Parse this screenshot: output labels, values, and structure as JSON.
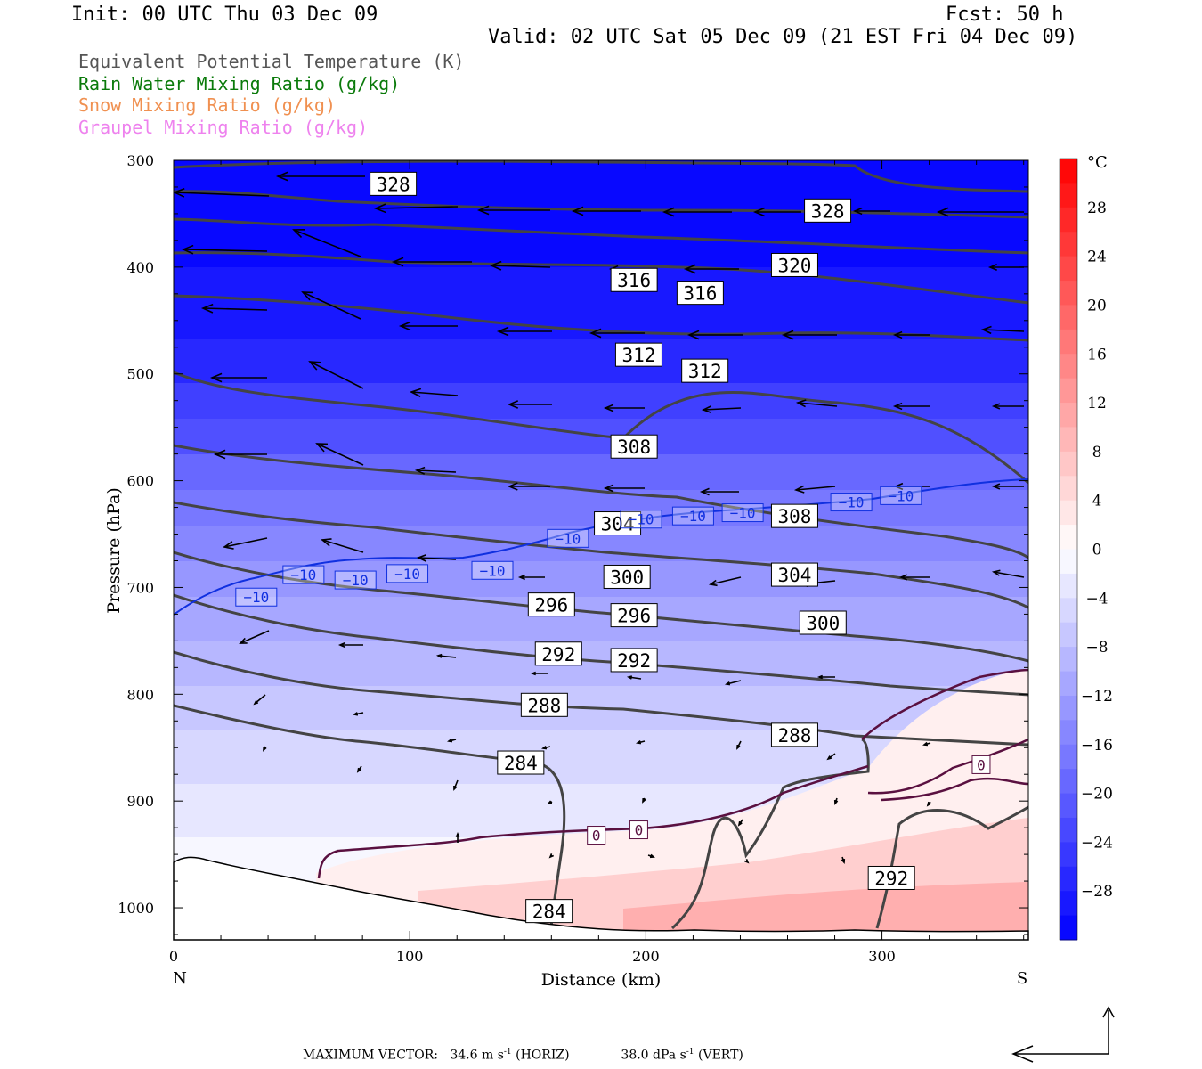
{
  "header": {
    "init": "Init: 00 UTC Thu 03 Dec 09",
    "fcst": "Fcst:   50 h",
    "valid": "Valid: 02 UTC Sat 05 Dec 09 (21 EST Fri 04 Dec 09)"
  },
  "fields": [
    {
      "label": "Equivalent Potential Temperature (K)",
      "color": "#555555"
    },
    {
      "label": "Rain Water Mixing Ratio (g/kg)",
      "color": "#0a7a0a"
    },
    {
      "label": "Snow Mixing Ratio (g/kg)",
      "color": "#f09050"
    },
    {
      "label": "Graupel Mixing Ratio (g/kg)",
      "color": "#ee82ee"
    }
  ],
  "footer": {
    "max_label": "MAXIMUM VECTOR:",
    "horiz_value": "34.6 m s",
    "horiz_unit": "(HORIZ)",
    "vert_value": "38.0 dPa s",
    "vert_unit": "(VERT)",
    "exponent": "-1"
  },
  "chart_data": {
    "type": "heatmap",
    "xlabel": "Distance (km)",
    "ylabel": "Pressure (hPa)",
    "x_ticks": [
      0,
      100,
      200,
      300
    ],
    "y_ticks": [
      300,
      400,
      500,
      600,
      700,
      800,
      900,
      1000
    ],
    "xlim": [
      0,
      362
    ],
    "ylim": [
      300,
      1030
    ],
    "y_direction": "pressure decreasing upward",
    "x_end_labels": {
      "left": "N",
      "right": "S"
    },
    "colorbar": {
      "unit": "°C",
      "ticks": [
        28,
        24,
        20,
        16,
        12,
        8,
        4,
        0,
        -4,
        -8,
        -12,
        -16,
        -20,
        -24,
        -28
      ],
      "range": [
        -32,
        32
      ],
      "colors": "blue (cold) to red (warm)"
    },
    "theta_e_contour_labels": [
      {
        "value": 328,
        "x": 93,
        "p": 322
      },
      {
        "value": 328,
        "x": 277,
        "p": 347
      },
      {
        "value": 320,
        "x": 263,
        "p": 398
      },
      {
        "value": 316,
        "x": 195,
        "p": 412
      },
      {
        "value": 316,
        "x": 223,
        "p": 424
      },
      {
        "value": 312,
        "x": 197,
        "p": 482
      },
      {
        "value": 312,
        "x": 225,
        "p": 497
      },
      {
        "value": 308,
        "x": 195,
        "p": 568
      },
      {
        "value": 308,
        "x": 263,
        "p": 633
      },
      {
        "value": 304,
        "x": 188,
        "p": 640
      },
      {
        "value": 304,
        "x": 263,
        "p": 688
      },
      {
        "value": 300,
        "x": 192,
        "p": 690
      },
      {
        "value": 300,
        "x": 275,
        "p": 733
      },
      {
        "value": 296,
        "x": 160,
        "p": 716
      },
      {
        "value": 296,
        "x": 195,
        "p": 726
      },
      {
        "value": 292,
        "x": 163,
        "p": 762
      },
      {
        "value": 292,
        "x": 195,
        "p": 768
      },
      {
        "value": 292,
        "x": 304,
        "p": 972
      },
      {
        "value": 288,
        "x": 157,
        "p": 810
      },
      {
        "value": 288,
        "x": 263,
        "p": 838
      },
      {
        "value": 284,
        "x": 147,
        "p": 864
      },
      {
        "value": 284,
        "x": 159,
        "p": 1003
      }
    ],
    "temperature_contour_labels": [
      {
        "value": -10,
        "x": 35,
        "p": 709
      },
      {
        "value": -10,
        "x": 55,
        "p": 688
      },
      {
        "value": -10,
        "x": 77,
        "p": 693
      },
      {
        "value": -10,
        "x": 99,
        "p": 687
      },
      {
        "value": -10,
        "x": 135,
        "p": 684
      },
      {
        "value": -10,
        "x": 167,
        "p": 654
      },
      {
        "value": -10,
        "x": 198,
        "p": 636
      },
      {
        "value": -10,
        "x": 220,
        "p": 633
      },
      {
        "value": -10,
        "x": 241,
        "p": 630
      },
      {
        "value": -10,
        "x": 287,
        "p": 620
      },
      {
        "value": -10,
        "x": 308,
        "p": 614
      },
      {
        "value": 0,
        "x": 179,
        "p": 932
      },
      {
        "value": 0,
        "x": 197,
        "p": 927
      },
      {
        "value": 0,
        "x": 342,
        "p": 866
      }
    ]
  }
}
